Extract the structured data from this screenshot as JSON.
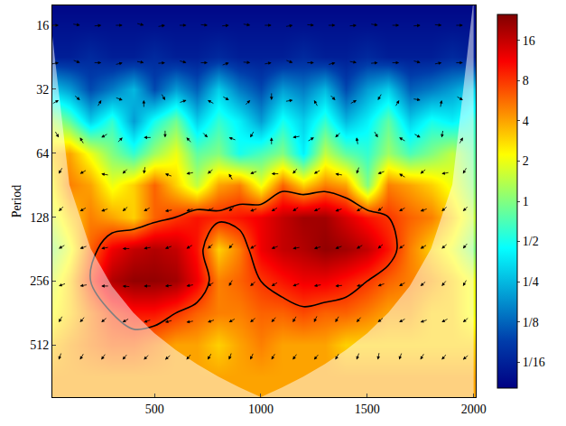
{
  "chart_data": {
    "type": "heatmap",
    "y_label": "Period",
    "log": "y",
    "x": [
      0,
      100,
      200,
      300,
      400,
      500,
      600,
      700,
      800,
      900,
      1000,
      1100,
      1200,
      1300,
      1400,
      1500,
      1600,
      1700,
      1800,
      1900,
      2000
    ],
    "y": [
      11.3,
      16,
      22.6,
      32,
      45,
      64,
      90.5,
      128,
      181,
      256,
      362,
      512,
      724,
      1024
    ],
    "cells": [
      [
        0.04,
        0.04,
        0.04,
        0.04,
        0.04,
        0.04,
        0.04,
        0.04,
        0.04,
        0.04,
        0.04,
        0.04,
        0.04,
        0.04,
        0.04,
        0.04,
        0.04,
        0.04,
        0.04,
        0.04,
        0.04
      ],
      [
        0.05,
        0.05,
        0.05,
        0.05,
        0.05,
        0.05,
        0.05,
        0.05,
        0.05,
        0.05,
        0.05,
        0.05,
        0.05,
        0.05,
        0.05,
        0.05,
        0.05,
        0.05,
        0.05,
        0.05,
        0.05
      ],
      [
        0.06,
        0.06,
        0.07,
        0.06,
        0.06,
        0.07,
        0.06,
        0.06,
        0.07,
        0.06,
        0.06,
        0.06,
        0.07,
        0.06,
        0.06,
        0.07,
        0.06,
        0.06,
        0.06,
        0.07,
        0.06
      ],
      [
        0.3,
        0.2,
        0.1,
        0.15,
        0.25,
        0.1,
        0.2,
        0.12,
        0.3,
        0.15,
        0.1,
        0.2,
        0.15,
        0.25,
        0.1,
        0.2,
        0.3,
        0.12,
        0.15,
        0.2,
        0.3
      ],
      [
        1.5,
        0.8,
        0.3,
        0.6,
        0.2,
        0.5,
        0.9,
        0.3,
        0.6,
        0.4,
        0.2,
        0.5,
        0.3,
        0.6,
        0.25,
        0.4,
        0.8,
        0.3,
        0.5,
        0.4,
        0.6
      ],
      [
        3,
        4,
        2,
        1,
        0.6,
        1.2,
        2,
        0.8,
        1,
        0.5,
        0.7,
        1,
        0.4,
        1.5,
        0.8,
        0.6,
        1.2,
        0.7,
        1,
        1.5,
        0.8
      ],
      [
        2,
        5,
        4,
        2,
        3,
        6,
        3,
        1.5,
        4,
        5,
        2,
        6,
        3,
        5,
        4,
        1,
        5,
        4,
        3,
        2,
        1
      ],
      [
        1.5,
        3,
        5,
        4,
        3,
        6,
        8,
        10,
        9,
        10,
        12,
        16,
        20,
        20,
        14,
        10,
        8,
        6,
        5,
        3,
        1.5
      ],
      [
        1,
        2,
        6,
        12,
        16,
        18,
        16,
        10,
        3,
        5,
        12,
        16,
        18,
        22,
        20,
        16,
        10,
        5,
        3,
        2,
        1
      ],
      [
        1.5,
        3,
        8,
        18,
        22,
        22,
        20,
        12,
        5,
        6,
        8,
        10,
        12,
        12,
        10,
        8,
        6,
        5,
        4,
        3,
        2
      ],
      [
        2,
        3,
        5,
        8,
        10,
        10,
        8,
        6,
        5,
        5,
        6,
        6,
        7,
        6,
        6,
        5,
        4,
        4,
        3,
        3,
        2
      ],
      [
        3,
        4,
        5,
        6,
        6,
        5,
        4,
        4,
        3,
        4,
        5,
        4,
        4,
        4,
        3,
        3,
        3,
        3,
        3,
        3,
        3
      ],
      [
        4,
        4,
        4,
        4,
        4,
        4,
        4,
        4,
        4,
        4,
        4,
        4,
        4,
        4,
        4,
        4,
        4,
        4,
        4,
        4,
        4
      ],
      [
        4,
        4,
        4,
        4,
        4,
        4,
        4,
        4,
        4,
        4,
        4,
        4,
        4,
        4,
        4,
        4,
        4,
        4,
        4,
        4,
        4
      ]
    ],
    "contour_level": 8,
    "cone_of_influence": {
      "x": [
        0,
        100,
        200,
        300,
        400,
        500,
        600,
        700,
        800,
        900,
        1000,
        1100,
        1200,
        1300,
        1400,
        1500,
        1600,
        1700,
        1800,
        1900,
        2000
      ],
      "periods": [
        12,
        90,
        180,
        270,
        360,
        450,
        540,
        630,
        720,
        810,
        900,
        810,
        720,
        630,
        540,
        450,
        360,
        270,
        180,
        90,
        12
      ]
    },
    "phase_arrows": {
      "x": [
        50,
        150,
        250,
        350,
        450,
        550,
        650,
        750,
        850,
        950,
        1050,
        1150,
        1250,
        1350,
        1450,
        1550,
        1650,
        1750,
        1850,
        1950
      ],
      "periods": [
        16,
        24,
        36,
        54,
        80,
        120,
        180,
        270,
        400,
        600
      ],
      "angles": [
        [
          0,
          -10,
          5,
          0,
          -15,
          10,
          0,
          -5,
          5,
          -10,
          0,
          10,
          -5,
          0,
          5,
          -10,
          0,
          5,
          -5,
          0
        ],
        [
          10,
          -20,
          0,
          15,
          -10,
          5,
          -15,
          0,
          20,
          -5,
          10,
          -20,
          0,
          15,
          -10,
          5,
          0,
          -15,
          10,
          0
        ],
        [
          30,
          -40,
          60,
          -20,
          90,
          -60,
          20,
          150,
          -30,
          45,
          -90,
          10,
          120,
          -45,
          30,
          -120,
          60,
          -10,
          80,
          -30
        ],
        [
          -60,
          120,
          -150,
          45,
          180,
          -90,
          135,
          -45,
          160,
          -120,
          90,
          -170,
          30,
          -135,
          100,
          -60,
          150,
          -30,
          -100,
          60
        ],
        [
          -120,
          -150,
          170,
          -135,
          -100,
          160,
          -170,
          -140,
          120,
          -160,
          180,
          -130,
          -150,
          170,
          -110,
          -160,
          150,
          -140,
          -170,
          -120
        ],
        [
          -135,
          -150,
          -160,
          -140,
          -150,
          -170,
          -160,
          -150,
          -140,
          -160,
          -150,
          -145,
          -155,
          -160,
          -150,
          -140,
          -150,
          -160,
          -140,
          -135
        ],
        [
          -150,
          -160,
          -170,
          180,
          -170,
          -160,
          -150,
          -140,
          -130,
          -150,
          -160,
          -170,
          -165,
          -160,
          -150,
          -140,
          -145,
          -150,
          -140,
          -130
        ],
        [
          -160,
          -170,
          180,
          175,
          180,
          -175,
          -170,
          -150,
          -120,
          -140,
          -150,
          -160,
          -170,
          -175,
          -170,
          -160,
          -150,
          -140,
          -130,
          -120
        ],
        [
          -120,
          -130,
          -140,
          -150,
          -160,
          -165,
          -170,
          -160,
          -150,
          -140,
          -130,
          -120,
          -115,
          -120,
          -130,
          -140,
          -150,
          -160,
          -150,
          -140
        ],
        [
          -110,
          -120,
          -125,
          -130,
          -135,
          -140,
          -130,
          -120,
          -110,
          -115,
          -120,
          -125,
          -130,
          -120,
          -110,
          -100,
          -110,
          -120,
          -130,
          -140
        ]
      ]
    },
    "xlim": [
      20,
      2010
    ],
    "xticks": [
      500,
      1000,
      1500,
      2000
    ],
    "ylim": [
      12.9,
      900
    ],
    "yticks": [
      16,
      32,
      64,
      128,
      256,
      512
    ],
    "zlim": [
      0.04,
      25
    ],
    "zticks": [
      {
        "value": 0.0625,
        "label": "1/16"
      },
      {
        "value": 0.125,
        "label": "1/8"
      },
      {
        "value": 0.25,
        "label": "1/4"
      },
      {
        "value": 0.5,
        "label": "1/2"
      },
      1,
      2,
      4,
      8,
      16
    ]
  }
}
